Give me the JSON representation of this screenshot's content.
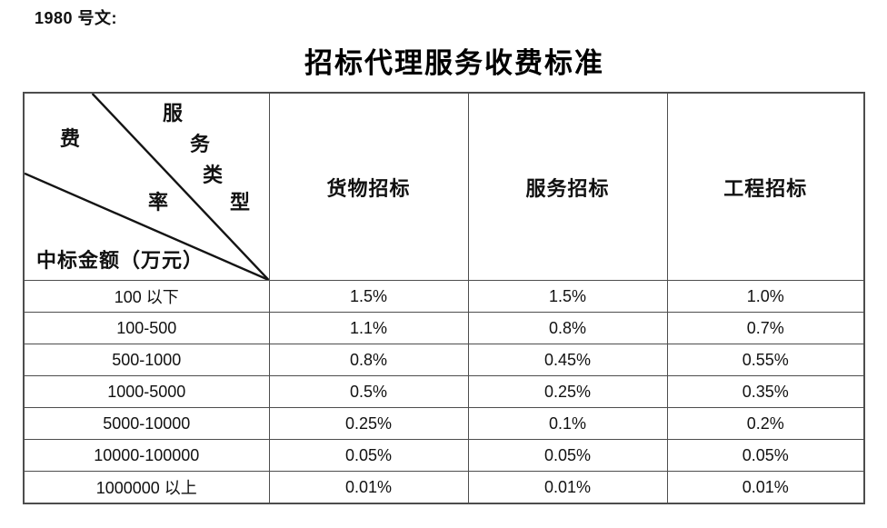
{
  "doc": {
    "reference": "1980 号文:",
    "title": "招标代理服务收费标准"
  },
  "table": {
    "corner": {
      "type_label": "服务类型",
      "type_chars": [
        "服",
        "务",
        "类",
        "型"
      ],
      "fee_label": "费率",
      "fee_chars": [
        "费",
        "率"
      ],
      "row_axis_label": "中标金额（万元）"
    },
    "columns": [
      "货物招标",
      "服务招标",
      "工程招标"
    ],
    "rows": [
      {
        "amount": "100 以下",
        "values": [
          "1.5%",
          "1.5%",
          "1.0%"
        ]
      },
      {
        "amount": "100-500",
        "values": [
          "1.1%",
          "0.8%",
          "0.7%"
        ]
      },
      {
        "amount": "500-1000",
        "values": [
          "0.8%",
          "0.45%",
          "0.55%"
        ]
      },
      {
        "amount": "1000-5000",
        "values": [
          "0.5%",
          "0.25%",
          "0.35%"
        ]
      },
      {
        "amount": "5000-10000",
        "values": [
          "0.25%",
          "0.1%",
          "0.2%"
        ]
      },
      {
        "amount": "10000-100000",
        "values": [
          "0.05%",
          "0.05%",
          "0.05%"
        ]
      },
      {
        "amount": "1000000 以上",
        "values": [
          "0.01%",
          "0.01%",
          "0.01%"
        ]
      }
    ]
  },
  "colors": {
    "border": "#4d4d4d",
    "diagonal_line": "#141414",
    "text": "#111111"
  }
}
